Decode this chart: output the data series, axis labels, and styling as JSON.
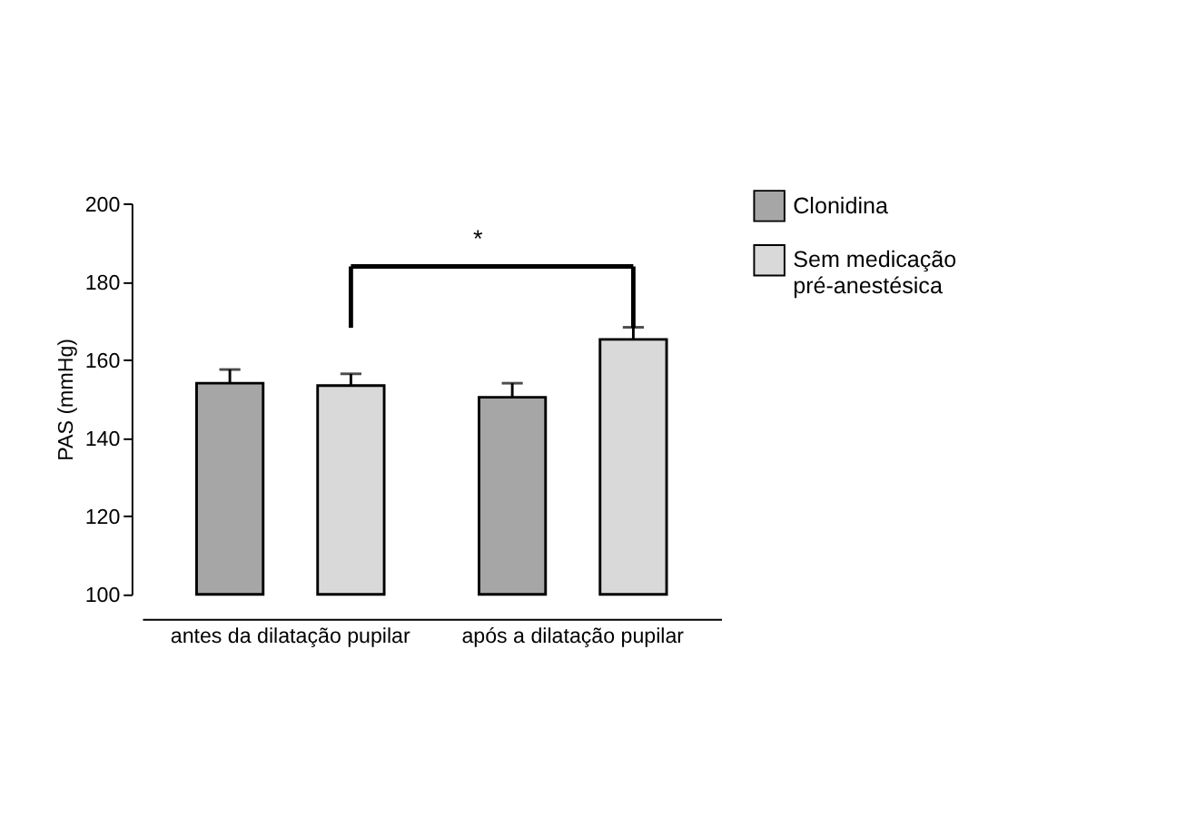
{
  "chart_data": {
    "type": "bar",
    "ylabel": "PAS (mmHg)",
    "categories": [
      "antes da dilatação pupilar",
      "após a dilatação pupilar"
    ],
    "series": [
      {
        "name": "Clonidina",
        "color": "#a6a6a6",
        "values": [
          154,
          150.4
        ],
        "errors": [
          [
            154,
            157.5
          ],
          [
            150.4,
            154
          ]
        ]
      },
      {
        "name": "Sem medicação pré-anestésica",
        "color": "#d9d9d9",
        "values": [
          153.4,
          165.2
        ],
        "errors": [
          [
            153.4,
            156.4
          ],
          [
            165.2,
            168.3
          ]
        ]
      }
    ],
    "ylim": [
      100,
      200
    ],
    "yticks": [
      100,
      120,
      140,
      160,
      180,
      200
    ],
    "annotations": [
      "*"
    ],
    "legend": "top right",
    "grid": false
  }
}
